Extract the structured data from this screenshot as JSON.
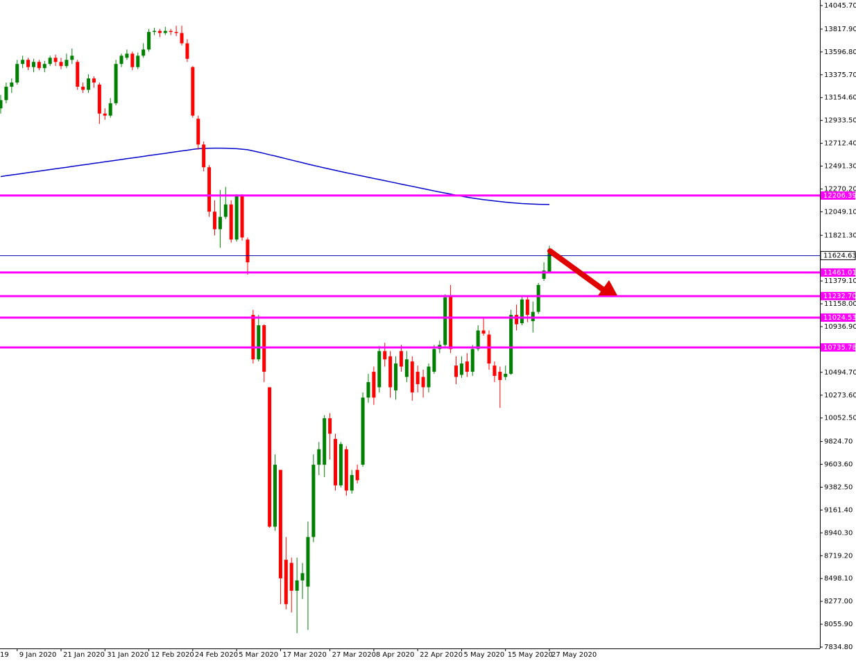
{
  "chart_data": {
    "type": "candlestick",
    "categories": [
      "19",
      null,
      null,
      "9 Jan 2020",
      null,
      null,
      null,
      null,
      null,
      null,
      null,
      "21 Jan 2020",
      null,
      null,
      null,
      null,
      null,
      null,
      null,
      "31 Jan 2020",
      null,
      null,
      null,
      null,
      null,
      null,
      null,
      "12 Feb 2020",
      null,
      null,
      null,
      null,
      null,
      null,
      null,
      "24 Feb 2020",
      null,
      null,
      null,
      null,
      null,
      null,
      null,
      "5 Mar 2020",
      null,
      null,
      null,
      null,
      null,
      null,
      null,
      "17 Mar 2020",
      null,
      null,
      null,
      null,
      null,
      null,
      null,
      null,
      "27 Mar 2020",
      null,
      null,
      null,
      null,
      null,
      null,
      null,
      "8 Apr 2020",
      null,
      null,
      null,
      null,
      null,
      null,
      null,
      "22 Apr 2020",
      null,
      null,
      null,
      null,
      null,
      null,
      null,
      "5 May 2020",
      null,
      null,
      null,
      null,
      null,
      null,
      null,
      "15 May 2020",
      null,
      null,
      null,
      null,
      null,
      null,
      null,
      "27 May 2020"
    ],
    "open": [
      13050,
      13130,
      13260,
      13300,
      13480,
      13520,
      13450,
      13500,
      13440,
      13480,
      13540,
      13500,
      13460,
      13520,
      13500,
      13260,
      13230,
      13340,
      13280,
      13000,
      12980,
      13100,
      13480,
      13540,
      13580,
      13450,
      13560,
      13620,
      13790,
      13800,
      13780,
      13800,
      13790,
      13780,
      13680,
      13450,
      12950,
      12700,
      12480,
      12050,
      11880,
      12000,
      12120,
      11780,
      12200,
      11780,
      11050,
      10620,
      10950,
      10350,
      9000,
      9550,
      8680,
      8650,
      8380,
      8480,
      8420,
      8900,
      9600,
      9600,
      10050,
      9850,
      9400,
      9750,
      9350,
      9550,
      9600,
      10250,
      10500,
      10350,
      10700,
      10650,
      10320,
      10700,
      10450,
      10600,
      10500,
      10450,
      10350,
      10500,
      10720,
      10760,
      11230,
      10560,
      10470,
      10600,
      10500,
      10720,
      10900,
      10860,
      10560,
      10500,
      10450,
      10480,
      11050,
      10970,
      11200,
      10990,
      11080,
      11400,
      11470
    ],
    "high": [
      13180,
      13300,
      13340,
      13520,
      13560,
      13540,
      13530,
      13520,
      13510,
      13560,
      13570,
      13540,
      13580,
      13630,
      13520,
      13300,
      13380,
      13360,
      13300,
      13050,
      13150,
      13520,
      13580,
      13620,
      13600,
      13590,
      13680,
      13820,
      13830,
      13820,
      13840,
      13820,
      13850,
      13850,
      13720,
      13460,
      12980,
      12730,
      12500,
      12160,
      12260,
      12290,
      12160,
      12220,
      12220,
      11800,
      11100,
      11050,
      10960,
      10350,
      9700,
      9550,
      8900,
      8700,
      8700,
      8650,
      9050,
      9700,
      9820,
      10080,
      10100,
      9900,
      9820,
      9780,
      9550,
      9600,
      10300,
      10480,
      10550,
      10750,
      10780,
      10700,
      10650,
      10760,
      10700,
      10650,
      10560,
      10520,
      10580,
      10760,
      10800,
      11250,
      11340,
      10650,
      10650,
      10680,
      10760,
      10950,
      11020,
      10900,
      10600,
      10550,
      10560,
      11100,
      11150,
      11230,
      11230,
      11180,
      11360,
      11560,
      11720
    ],
    "low": [
      13000,
      13100,
      13200,
      13280,
      13440,
      13420,
      13400,
      13420,
      13400,
      13460,
      13460,
      13430,
      13440,
      13480,
      13230,
      13200,
      13200,
      13250,
      12900,
      12940,
      12960,
      13080,
      13450,
      13520,
      13420,
      13430,
      13540,
      13600,
      13760,
      13740,
      13760,
      13760,
      13750,
      13660,
      13500,
      12960,
      12650,
      12440,
      12000,
      11820,
      11700,
      11980,
      11750,
      11760,
      11770,
      11440,
      10580,
      10600,
      10400,
      8990,
      8960,
      8250,
      8200,
      8170,
      7970,
      8300,
      8000,
      8850,
      9500,
      9480,
      9650,
      9350,
      9380,
      9300,
      9320,
      9420,
      9580,
      10200,
      10180,
      10300,
      10550,
      10250,
      10230,
      10500,
      10400,
      10220,
      10300,
      10250,
      10300,
      10480,
      10680,
      10740,
      10680,
      10380,
      10440,
      10450,
      10460,
      10700,
      10850,
      10520,
      10400,
      10150,
      10420,
      10470,
      10900,
      10950,
      10980,
      10880,
      11060,
      11380,
      11460
    ],
    "close": [
      13130,
      13260,
      13300,
      13480,
      13520,
      13450,
      13500,
      13440,
      13480,
      13540,
      13500,
      13460,
      13520,
      13560,
      13260,
      13230,
      13340,
      13300,
      13000,
      12980,
      13100,
      13480,
      13560,
      13580,
      13450,
      13560,
      13620,
      13790,
      13800,
      13780,
      13800,
      13790,
      13780,
      13680,
      13530,
      12980,
      12700,
      12480,
      12050,
      11880,
      12000,
      12120,
      11780,
      12200,
      11800,
      11560,
      10620,
      10950,
      10500,
      9000,
      9600,
      8500,
      8250,
      8380,
      8480,
      8550,
      8900,
      9600,
      9750,
      10050,
      9900,
      9400,
      9800,
      9350,
      9500,
      9450,
      10250,
      10400,
      10250,
      10700,
      10620,
      10350,
      10580,
      10550,
      10620,
      10300,
      10380,
      10350,
      10550,
      10720,
      10760,
      11220,
      10720,
      10450,
      10580,
      10500,
      10720,
      10900,
      10870,
      10580,
      10460,
      10420,
      10480,
      11050,
      10960,
      11200,
      11050,
      11080,
      11340,
      11480,
      11650
    ],
    "up_color": "#008000",
    "down_color": "#ff0000",
    "moving_average": {
      "color": "#0000cc",
      "values": [
        12390,
        12398,
        12405,
        12413,
        12420,
        12428,
        12435,
        12443,
        12450,
        12458,
        12465,
        12473,
        12480,
        12488,
        12495,
        12503,
        12510,
        12518,
        12525,
        12533,
        12540,
        12548,
        12555,
        12563,
        12570,
        12578,
        12585,
        12593,
        12600,
        12608,
        12615,
        12623,
        12630,
        12638,
        12645,
        12653,
        12660,
        12662,
        12664,
        12665,
        12665,
        12664,
        12662,
        12660,
        12655,
        12650,
        12638,
        12626,
        12614,
        12601,
        12589,
        12576,
        12563,
        12550,
        12537,
        12524,
        12511,
        12498,
        12486,
        12474,
        12462,
        12450,
        12438,
        12427,
        12416,
        12405,
        12394,
        12383,
        12372,
        12361,
        12350,
        12339,
        12328,
        12317,
        12306,
        12295,
        12284,
        12273,
        12262,
        12251,
        12240,
        12230,
        12220,
        12210,
        12200,
        12190,
        12182,
        12174,
        12166,
        12160,
        12154,
        12148,
        12142,
        12137,
        12133,
        12129,
        12126,
        12123,
        12121,
        12120,
        12119
      ]
    },
    "levels": {
      "color": "#ff00ff",
      "values": [
        12206.39,
        11461.01,
        {
          "value": 11232.7,
          "label": "11232.70"
        },
        11024.53,
        10735.78
      ]
    },
    "current_price": {
      "color": "#0000a0",
      "value": 11624.63
    },
    "ylim": [
      7821.3,
      14099.4
    ],
    "yticks": [
      {
        "value": 14045.7,
        "label": "14045.70"
      },
      {
        "value": 13817.9,
        "label": "13817.90"
      },
      {
        "value": 13596.8,
        "label": "13596.80"
      },
      {
        "value": 13375.7,
        "label": "13375.70"
      },
      {
        "value": 13154.6,
        "label": "13154.60"
      },
      {
        "value": 12933.5,
        "label": "12933.50"
      },
      {
        "value": 12712.4,
        "label": "12712.40"
      },
      {
        "value": 12491.3,
        "label": "12491.30"
      },
      {
        "value": 12270.2,
        "label": "12270.20"
      },
      {
        "value": 12049.1,
        "label": "12049.10"
      },
      {
        "value": 11821.3,
        "label": "11821.30"
      },
      {
        "value": 11379.1,
        "label": "11379.10"
      },
      {
        "value": 11158,
        "label": "11158.00"
      },
      {
        "value": 10936.9,
        "label": "10936.90"
      },
      {
        "value": 10494.7,
        "label": "10494.70"
      },
      {
        "value": 10273.6,
        "label": "10273.60"
      },
      {
        "value": 10052.5,
        "label": "10052.50"
      },
      {
        "value": 9824.7,
        "label": "9824.70"
      },
      {
        "value": 9603.6,
        "label": "9603.60"
      },
      {
        "value": 9382.5,
        "label": "9382.50"
      },
      {
        "value": 9161.4,
        "label": "9161.40"
      },
      {
        "value": 8940.3,
        "label": "8940.30"
      },
      {
        "value": 8719.2,
        "label": "8719.20"
      },
      {
        "value": 8498.1,
        "label": "8498.10"
      },
      {
        "value": 8277,
        "label": "8277.00"
      },
      {
        "value": 8055.9,
        "label": "8055.90"
      },
      {
        "value": 7834.8,
        "label": "7834.80"
      }
    ]
  }
}
